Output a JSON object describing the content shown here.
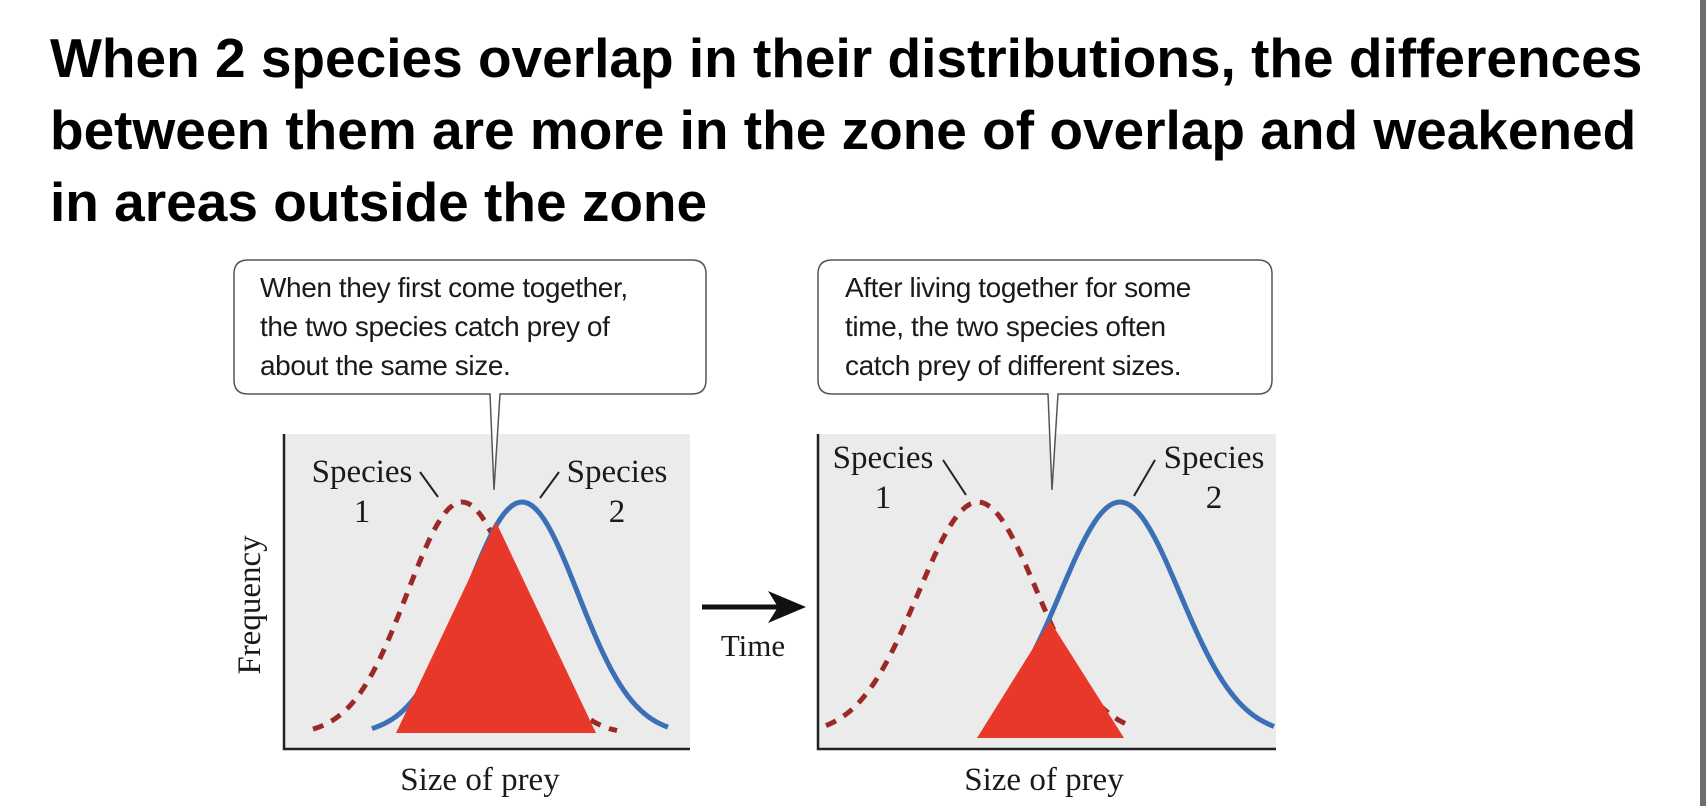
{
  "title_lines": [
    "When 2 species overlap in their distributions, the differences",
    "between them are more in the zone of overlap and weakened",
    "in areas outside the zone"
  ],
  "panels": [
    {
      "callout_lines": [
        "When they first come together,",
        "the two species catch prey of",
        "about the same size."
      ],
      "species1_label": [
        "Species",
        "1"
      ],
      "species2_label": [
        "Species",
        "2"
      ],
      "x_label": "Size of prey",
      "y_label": "Frequency"
    },
    {
      "callout_lines": [
        "After living together for some",
        "time, the two species often",
        "catch prey of different sizes."
      ],
      "species1_label": [
        "Species",
        "1"
      ],
      "species2_label": [
        "Species",
        "2"
      ],
      "x_label": "Size of prey"
    }
  ],
  "arrow_label": "Time",
  "colors": {
    "species1_curve": "#9b2a27",
    "species2_curve": "#3b6fb6",
    "overlap_marker": "#e8382a",
    "plot_background": "#ebebeb"
  },
  "icons": [
    "right-arrow-icon"
  ]
}
